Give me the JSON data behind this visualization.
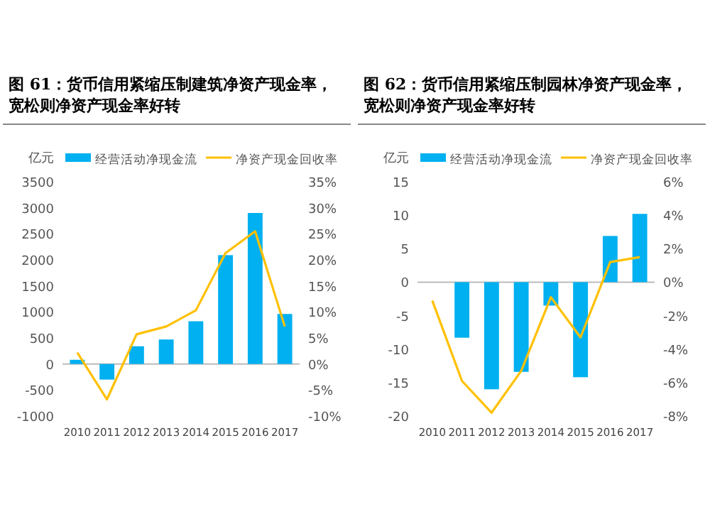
{
  "chart_data": [
    {
      "type": "bar",
      "title": "图 61：货币信用紧缩压制建筑净资产现金率，宽松则净资产现金率好转",
      "ylabel": "亿元",
      "categories": [
        "2010",
        "2011",
        "2012",
        "2013",
        "2014",
        "2015",
        "2016",
        "2017"
      ],
      "series": [
        {
          "name": "经营活动净现金流",
          "color": "#00b0f0",
          "values": [
            80,
            -300,
            340,
            470,
            820,
            2090,
            2900,
            960
          ]
        },
        {
          "name": "净资产现金回收率",
          "type": "line",
          "axis": "y2",
          "color": "#ffc000",
          "values": [
            2.2,
            -6.8,
            5.7,
            7.2,
            10.3,
            21.3,
            25.5,
            7.2
          ]
        }
      ],
      "ylim": [
        -1000,
        3500
      ],
      "yticks": [
        -1000,
        -500,
        0,
        500,
        1000,
        1500,
        2000,
        2500,
        3000,
        3500
      ],
      "y2lim": [
        -10,
        35
      ],
      "y2ticks": [
        {
          "value": -10,
          "label": "-10%"
        },
        {
          "value": -5,
          "label": "-5%"
        },
        {
          "value": 0,
          "label": "0%"
        },
        {
          "value": 5,
          "label": "5%"
        },
        {
          "value": 10,
          "label": "10%"
        },
        {
          "value": 15,
          "label": "15%"
        },
        {
          "value": 20,
          "label": "20%"
        },
        {
          "value": 25,
          "label": "25%"
        },
        {
          "value": 30,
          "label": "30%"
        },
        {
          "value": 35,
          "label": "35%"
        }
      ],
      "legend": "top"
    },
    {
      "type": "bar",
      "title": "图 62：货币信用紧缩压制园林净资产现金率，宽松则净资产现金率好转",
      "ylabel": "亿元",
      "categories": [
        "2010",
        "2011",
        "2012",
        "2013",
        "2014",
        "2015",
        "2016",
        "2017"
      ],
      "series": [
        {
          "name": "经营活动净现金流",
          "color": "#00b0f0",
          "values": [
            null,
            -8.3,
            -16,
            -13.4,
            -3.5,
            -14.2,
            6.9,
            10.2
          ]
        },
        {
          "name": "净资产现金回收率",
          "type": "line",
          "axis": "y2",
          "color": "#ffc000",
          "values": [
            -1.1,
            -5.9,
            -7.8,
            -5.3,
            -0.9,
            -3.3,
            1.2,
            1.5
          ]
        }
      ],
      "ylim": [
        -20,
        15
      ],
      "yticks": [
        -20,
        -15,
        -10,
        -5,
        0,
        5,
        10,
        15
      ],
      "y2lim": [
        -8,
        6
      ],
      "y2ticks": [
        {
          "value": -8,
          "label": "-8%"
        },
        {
          "value": -6,
          "label": "-6%"
        },
        {
          "value": -4,
          "label": "-4%"
        },
        {
          "value": -2,
          "label": "-2%"
        },
        {
          "value": 0,
          "label": "0%"
        },
        {
          "value": 2,
          "label": "2%"
        },
        {
          "value": 4,
          "label": "4%"
        },
        {
          "value": 6,
          "label": "6%"
        }
      ],
      "legend": "top"
    }
  ]
}
